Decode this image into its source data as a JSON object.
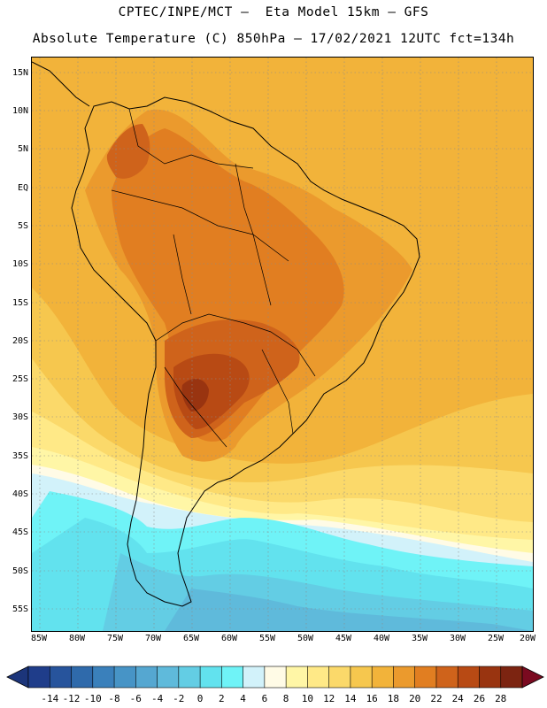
{
  "header": {
    "line1": "CPTEC/INPE/MCT –  Eta Model 15km – GFS",
    "line2": "Absolute Temperature (C) 850hPa – 17/02/2021 12UTC fct=134h"
  },
  "axes": {
    "lat_labels": [
      "15N",
      "10N",
      "5N",
      "EQ",
      "5S",
      "10S",
      "15S",
      "20S",
      "25S",
      "30S",
      "35S",
      "40S",
      "45S",
      "50S",
      "55S"
    ],
    "lon_labels": [
      "85W",
      "80W",
      "75W",
      "70W",
      "65W",
      "60W",
      "55W",
      "50W",
      "45W",
      "40W",
      "35W",
      "30W",
      "25W",
      "20W"
    ]
  },
  "colorbar": {
    "labels": [
      "-14",
      "-12",
      "-10",
      "-8",
      "-6",
      "-4",
      "-2",
      "0",
      "2",
      "4",
      "6",
      "8",
      "10",
      "12",
      "14",
      "16",
      "18",
      "20",
      "22",
      "24",
      "26",
      "28"
    ],
    "colors": [
      "#1f3d8a",
      "#27549c",
      "#2f6aab",
      "#3a80bb",
      "#4794c6",
      "#55a7d1",
      "#5fbadb",
      "#63cde4",
      "#62e2ee",
      "#6ff3f7",
      "#d2f2fa",
      "#fffbe6",
      "#fff6a6",
      "#ffe987",
      "#fbd96a",
      "#f6c74e",
      "#f2b33a",
      "#eb9a2d",
      "#e17e21",
      "#cf631b",
      "#b84a14",
      "#993410",
      "#7c2411"
    ],
    "low_arrow_color": "#1c357a",
    "high_arrow_color": "#7a0a20"
  }
}
